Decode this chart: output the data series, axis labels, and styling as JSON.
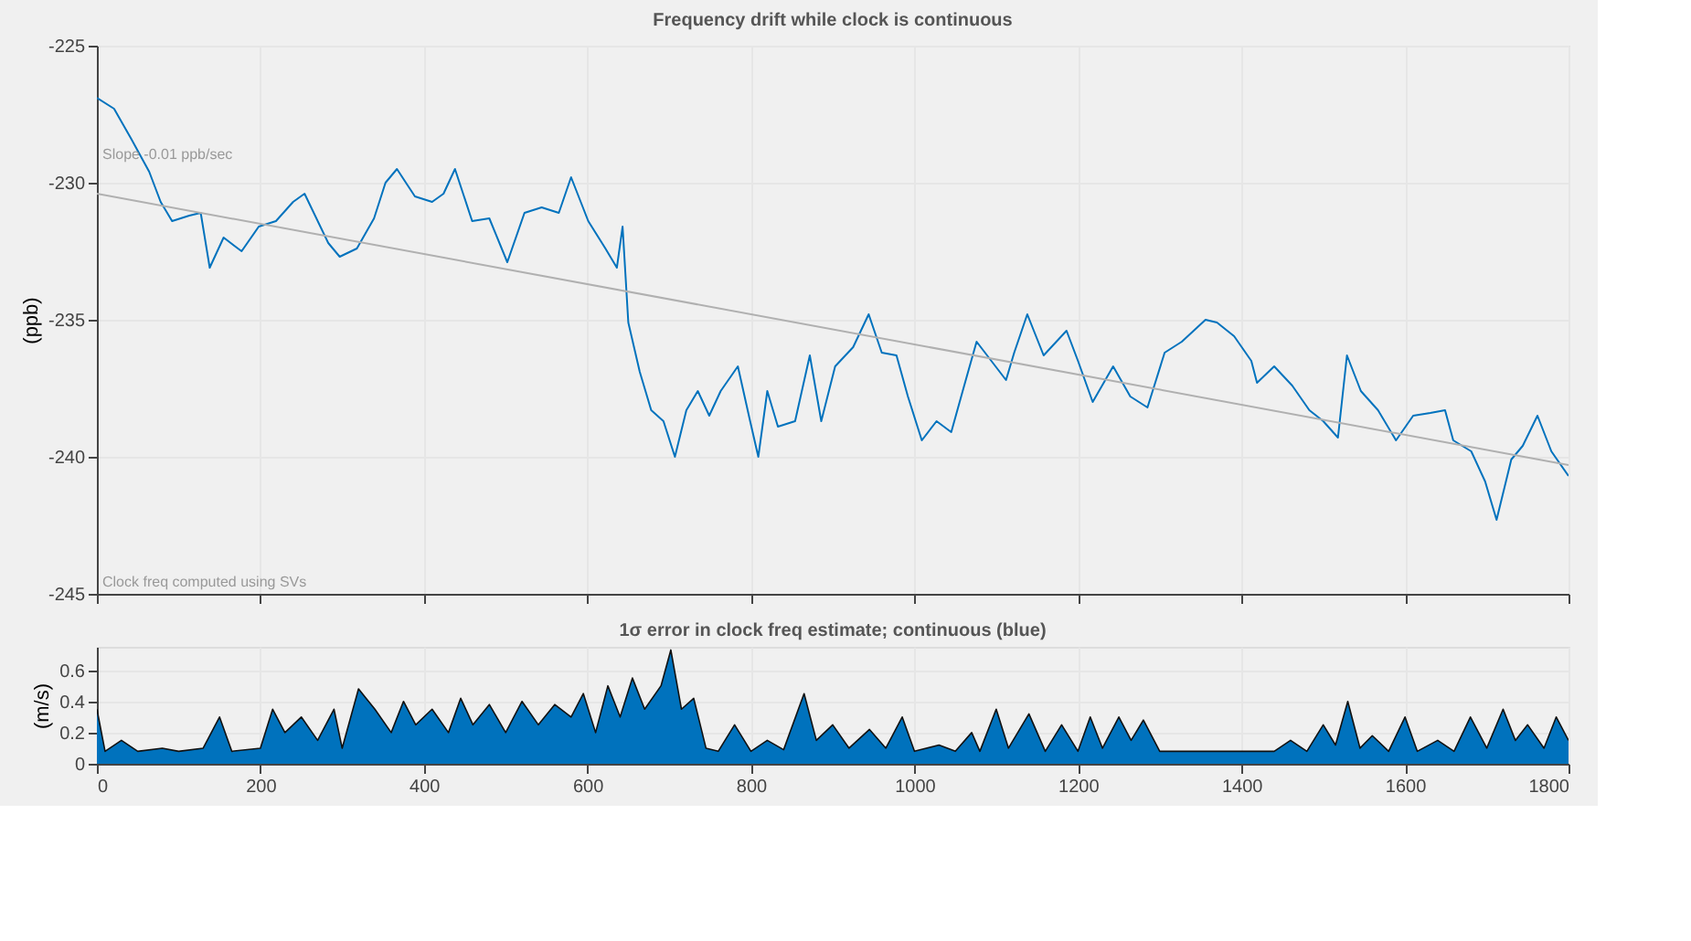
{
  "chart_data": [
    {
      "type": "line",
      "title": "Frequency drift while clock is continuous",
      "ylabel": "(ppb)",
      "xlim": [
        0,
        1800
      ],
      "xticks": [
        {
          "value": 0,
          "label": null
        },
        {
          "value": 200,
          "label": null
        },
        {
          "value": 400,
          "label": null
        },
        {
          "value": 600,
          "label": null
        },
        {
          "value": 800,
          "label": null
        },
        {
          "value": 1000,
          "label": null
        },
        {
          "value": 1200,
          "label": null
        },
        {
          "value": 1400,
          "label": null
        },
        {
          "value": 1600,
          "label": null
        },
        {
          "value": 1800,
          "label": null
        }
      ],
      "ylim": [
        -245,
        -225
      ],
      "yticks": [
        -245,
        -240,
        -235,
        -230,
        -225
      ],
      "grid": true,
      "tick_labels": "y",
      "annotations": [
        "Slope -0.01 ppb/sec",
        "Clock freq computed using SVs"
      ],
      "series": [
        {
          "color": "#0072bd",
          "x": [
            0,
            21,
            42,
            64,
            78,
            92,
            113,
            127,
            138,
            155,
            177,
            198,
            219,
            240,
            254,
            283,
            297,
            318,
            339,
            353,
            367,
            389,
            410,
            424,
            438,
            459,
            480,
            502,
            523,
            544,
            565,
            580,
            601,
            622,
            636,
            643,
            650,
            664,
            678,
            693,
            707,
            721,
            735,
            749,
            763,
            784,
            799,
            809,
            820,
            833,
            854,
            872,
            886,
            903,
            925,
            944,
            960,
            978,
            992,
            1009,
            1027,
            1045,
            1059,
            1076,
            1094,
            1112,
            1122,
            1138,
            1158,
            1186,
            1200,
            1218,
            1243,
            1264,
            1285,
            1306,
            1327,
            1356,
            1370,
            1391,
            1412,
            1419,
            1440,
            1462,
            1483,
            1500,
            1518,
            1529,
            1546,
            1567,
            1589,
            1610,
            1631,
            1649,
            1659,
            1681,
            1698,
            1712,
            1730,
            1744,
            1762,
            1779,
            1800
          ],
          "values": [
            -226.9,
            -227.3,
            -228.4,
            -229.6,
            -230.7,
            -231.4,
            -231.2,
            -231.1,
            -233.1,
            -232.0,
            -232.5,
            -231.6,
            -231.4,
            -230.7,
            -230.4,
            -232.2,
            -232.7,
            -232.4,
            -231.3,
            -230.0,
            -229.5,
            -230.5,
            -230.7,
            -230.4,
            -229.5,
            -231.4,
            -231.3,
            -232.9,
            -231.1,
            -230.9,
            -231.1,
            -229.8,
            -231.4,
            -232.4,
            -233.1,
            -231.6,
            -235.1,
            -236.9,
            -238.3,
            -238.7,
            -240.0,
            -238.3,
            -237.6,
            -238.5,
            -237.6,
            -236.7,
            -238.7,
            -240.0,
            -237.6,
            -238.9,
            -238.7,
            -236.3,
            -238.7,
            -236.7,
            -236.0,
            -234.8,
            -236.2,
            -236.3,
            -237.8,
            -239.4,
            -238.7,
            -239.1,
            -237.6,
            -235.8,
            -236.5,
            -237.2,
            -236.2,
            -234.8,
            -236.3,
            -235.4,
            -236.5,
            -238.0,
            -236.7,
            -237.8,
            -238.2,
            -236.2,
            -235.8,
            -235.0,
            -235.1,
            -235.6,
            -236.5,
            -237.3,
            -236.7,
            -237.4,
            -238.3,
            -238.7,
            -239.3,
            -236.3,
            -237.6,
            -238.3,
            -239.4,
            -238.5,
            -238.4,
            -238.3,
            -239.4,
            -239.8,
            -240.9,
            -242.3,
            -240.1,
            -239.6,
            -238.5,
            -239.8,
            -240.7
          ]
        },
        {
          "type": "line",
          "color": "#b0b0b0",
          "x": [
            0,
            1800
          ],
          "values": [
            -230.4,
            -240.3
          ]
        }
      ]
    },
    {
      "type": "area",
      "title": "1σ error in clock freq estimate; continuous (blue)",
      "ylabel": "(m/s)",
      "xlim": [
        0,
        1800
      ],
      "xticks": [
        0,
        200,
        400,
        600,
        800,
        1000,
        1200,
        1400,
        1600,
        1800
      ],
      "ylim": [
        0,
        0.75
      ],
      "yticks": [
        0,
        0.2,
        0.4,
        0.6
      ],
      "grid": true,
      "series": [
        {
          "color": "#0072bd",
          "x": [
            0,
            10,
            30,
            50,
            80,
            100,
            130,
            150,
            165,
            200,
            215,
            230,
            250,
            270,
            290,
            300,
            320,
            340,
            360,
            375,
            390,
            410,
            430,
            445,
            460,
            480,
            500,
            520,
            540,
            560,
            580,
            595,
            610,
            625,
            640,
            655,
            670,
            690,
            702,
            715,
            730,
            745,
            760,
            780,
            800,
            820,
            840,
            865,
            880,
            900,
            920,
            945,
            965,
            985,
            1000,
            1030,
            1050,
            1070,
            1080,
            1100,
            1115,
            1140,
            1160,
            1180,
            1200,
            1215,
            1230,
            1250,
            1265,
            1280,
            1300,
            1320,
            1360,
            1400,
            1440,
            1460,
            1480,
            1500,
            1515,
            1530,
            1545,
            1560,
            1580,
            1600,
            1615,
            1640,
            1660,
            1680,
            1700,
            1720,
            1735,
            1750,
            1770,
            1785,
            1800
          ],
          "values": [
            0.35,
            0.08,
            0.15,
            0.08,
            0.1,
            0.08,
            0.1,
            0.3,
            0.08,
            0.1,
            0.35,
            0.2,
            0.3,
            0.15,
            0.35,
            0.1,
            0.48,
            0.35,
            0.2,
            0.4,
            0.25,
            0.35,
            0.2,
            0.42,
            0.25,
            0.38,
            0.2,
            0.4,
            0.25,
            0.38,
            0.3,
            0.45,
            0.2,
            0.5,
            0.3,
            0.55,
            0.35,
            0.5,
            0.73,
            0.35,
            0.42,
            0.1,
            0.08,
            0.25,
            0.08,
            0.15,
            0.09,
            0.45,
            0.15,
            0.25,
            0.1,
            0.22,
            0.1,
            0.3,
            0.08,
            0.12,
            0.08,
            0.2,
            0.08,
            0.35,
            0.1,
            0.32,
            0.08,
            0.25,
            0.08,
            0.3,
            0.1,
            0.3,
            0.15,
            0.28,
            0.08,
            0.08,
            0.08,
            0.08,
            0.08,
            0.15,
            0.08,
            0.25,
            0.12,
            0.4,
            0.1,
            0.18,
            0.08,
            0.3,
            0.08,
            0.15,
            0.08,
            0.3,
            0.1,
            0.35,
            0.15,
            0.25,
            0.1,
            0.3,
            0.15
          ]
        }
      ]
    }
  ]
}
